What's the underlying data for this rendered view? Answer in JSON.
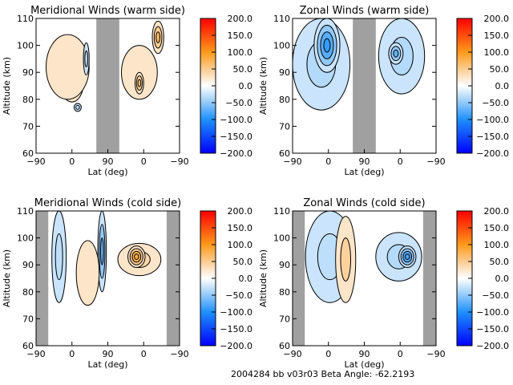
{
  "footer": "2004284 bb v03r03   Beta Angle: -62.2193",
  "colorscale": {
    "min": -200,
    "max": 200,
    "ticks": [
      "200.0",
      "150.0",
      "100.0",
      "50.0",
      "0.0",
      "−50.0",
      "−100.0",
      "−150.0",
      "−200.0"
    ],
    "stops": [
      {
        "v": -200,
        "c": "#0000ff"
      },
      {
        "v": -100,
        "c": "#1e90ff"
      },
      {
        "v": -40,
        "c": "#a8d4fa"
      },
      {
        "v": 0,
        "c": "#ffffff"
      },
      {
        "v": 40,
        "c": "#fcd6a8"
      },
      {
        "v": 100,
        "c": "#ff9a1a"
      },
      {
        "v": 200,
        "c": "#ff0000"
      }
    ]
  },
  "chart_data": [
    {
      "type": "heatmap",
      "title": "Meridional Winds (warm side)",
      "xlabel": "Lat (deg)",
      "ylabel": "Altitude (km)",
      "xticks": [
        "−90",
        "0",
        "90",
        "0",
        "−90"
      ],
      "yticks": [
        "60",
        "70",
        "80",
        "90",
        "100",
        "110"
      ],
      "ylim": [
        60,
        110
      ],
      "nodata_bands": [
        [
          0.42,
          0.58
        ]
      ],
      "features": [
        {
          "x": 0.25,
          "y": 86,
          "w": 0.16,
          "h": 14,
          "v": 60
        },
        {
          "x": 0.22,
          "y": 92,
          "w": 0.3,
          "h": 24,
          "v": 25
        },
        {
          "x": 0.85,
          "y": 103,
          "w": 0.08,
          "h": 12,
          "v": 70
        },
        {
          "x": 0.72,
          "y": 90,
          "w": 0.25,
          "h": 20,
          "v": 25
        },
        {
          "x": 0.35,
          "y": 95,
          "w": 0.04,
          "h": 12,
          "v": -30
        },
        {
          "x": 0.29,
          "y": 77,
          "w": 0.05,
          "h": 3,
          "v": -30
        },
        {
          "x": 0.72,
          "y": 86,
          "w": 0.06,
          "h": 8,
          "v": 60
        }
      ]
    },
    {
      "type": "heatmap",
      "title": "Zonal Winds (warm side)",
      "xlabel": "Lat (deg)",
      "ylabel": "Altitude (km)",
      "xticks": [
        "−90",
        "0",
        "90",
        "0",
        "−90"
      ],
      "yticks": [
        "60",
        "70",
        "80",
        "90",
        "100",
        "110"
      ],
      "ylim": [
        60,
        110
      ],
      "nodata_bands": [
        [
          0.42,
          0.58
        ]
      ],
      "features": [
        {
          "x": 0.2,
          "y": 93,
          "w": 0.4,
          "h": 34,
          "v": -35
        },
        {
          "x": 0.24,
          "y": 100,
          "w": 0.18,
          "h": 20,
          "v": -90
        },
        {
          "x": 0.76,
          "y": 96,
          "w": 0.32,
          "h": 28,
          "v": -35
        },
        {
          "x": 0.72,
          "y": 97,
          "w": 0.1,
          "h": 8,
          "v": -70
        }
      ]
    },
    {
      "type": "heatmap",
      "title": "Meridional Winds (cold side)",
      "xlabel": "Lat (deg)",
      "ylabel": "Altitude (km)",
      "xticks": [
        "−90",
        "0",
        "90",
        "0",
        "−90"
      ],
      "yticks": [
        "60",
        "70",
        "80",
        "90",
        "100",
        "110"
      ],
      "ylim": [
        60,
        110
      ],
      "nodata_bands": [
        [
          0.0,
          0.085
        ],
        [
          0.91,
          1.0
        ]
      ],
      "features": [
        {
          "x": 0.16,
          "y": 93,
          "w": 0.1,
          "h": 34,
          "v": -30
        },
        {
          "x": 0.46,
          "y": 95,
          "w": 0.06,
          "h": 30,
          "v": -70
        },
        {
          "x": 0.36,
          "y": 87,
          "w": 0.16,
          "h": 24,
          "v": 25
        },
        {
          "x": 0.72,
          "y": 92,
          "w": 0.3,
          "h": 12,
          "v": 40
        },
        {
          "x": 0.7,
          "y": 93,
          "w": 0.12,
          "h": 8,
          "v": 80
        }
      ]
    },
    {
      "type": "heatmap",
      "title": "Zonal Winds (cold side)",
      "xlabel": "Lat (deg)",
      "ylabel": "Altitude (km)",
      "xticks": [
        "−90",
        "0",
        "90",
        "0",
        "−90"
      ],
      "yticks": [
        "60",
        "70",
        "80",
        "90",
        "100",
        "110"
      ],
      "ylim": [
        60,
        110
      ],
      "nodata_bands": [
        [
          0.0,
          0.085
        ],
        [
          0.91,
          1.0
        ]
      ],
      "features": [
        {
          "x": 0.26,
          "y": 93,
          "w": 0.34,
          "h": 34,
          "v": -30
        },
        {
          "x": 0.37,
          "y": 92,
          "w": 0.14,
          "h": 32,
          "v": 45
        },
        {
          "x": 0.74,
          "y": 93,
          "w": 0.32,
          "h": 18,
          "v": -35
        },
        {
          "x": 0.8,
          "y": 93,
          "w": 0.12,
          "h": 8,
          "v": -80
        }
      ]
    }
  ]
}
